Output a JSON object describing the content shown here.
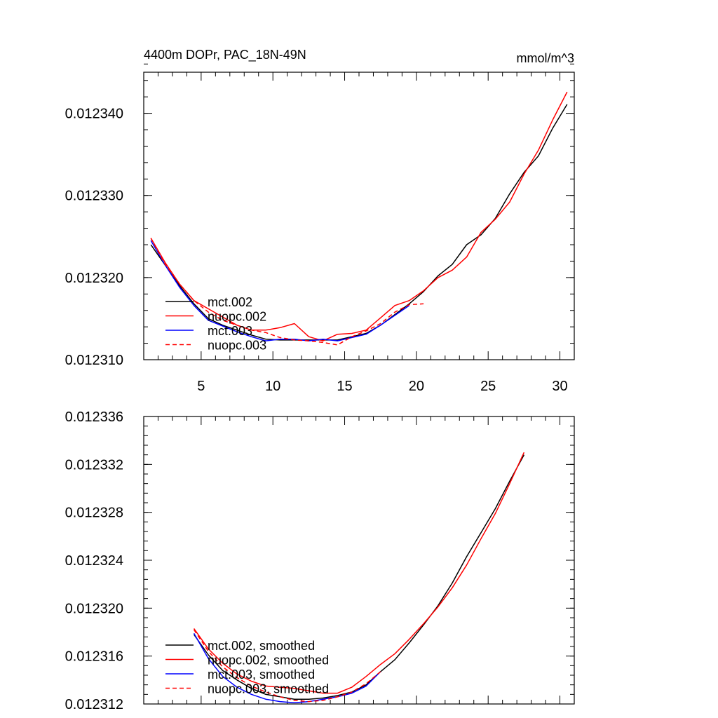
{
  "chart_data": [
    {
      "type": "line",
      "title": "4400m DOPr, PAC_18N-49N",
      "units": "mmol/m^3",
      "xlim": [
        1,
        31
      ],
      "ylim": [
        0.01231,
        0.012345
      ],
      "xticks": [
        5,
        10,
        15,
        20,
        25,
        30
      ],
      "xtick_labels": [
        "5",
        "10",
        "15",
        "20",
        "25",
        "30"
      ],
      "xtick_minor": [
        2,
        3,
        4,
        6,
        7,
        8,
        9,
        11,
        12,
        13,
        14,
        16,
        17,
        18,
        19,
        21,
        22,
        23,
        24,
        26,
        27,
        28,
        29,
        31
      ],
      "yticks": [
        0.01231,
        0.01232,
        0.01233,
        0.01234
      ],
      "ytick_labels": [
        "0.012310",
        "0.012320",
        "0.012330",
        "0.012340"
      ],
      "ytick_minor_step": 2e-06,
      "legend_position": "bottom-left",
      "series": [
        {
          "name": "mct.002",
          "color": "#000000",
          "dash": "solid",
          "x": [
            1.5,
            2.5,
            3.5,
            4.5,
            5.5,
            6.5,
            7.5,
            8.5,
            9.5,
            10.5,
            11.5,
            12.5,
            13.5,
            14.5,
            15.5,
            16.5,
            17.5,
            18.5,
            19.5,
            20.5,
            21.5,
            22.5,
            23.5,
            24.5,
            25.5,
            26.5,
            27.5,
            28.5,
            29.5,
            30.5
          ],
          "values": [
            0.012324,
            0.0123215,
            0.012319,
            0.0123168,
            0.012315,
            0.0123142,
            0.0123136,
            0.012313,
            0.0123125,
            0.0123124,
            0.0123124,
            0.0123124,
            0.0123124,
            0.0123124,
            0.0123128,
            0.0123132,
            0.0123142,
            0.0123155,
            0.0123168,
            0.0123183,
            0.0123202,
            0.0123216,
            0.012324,
            0.0123252,
            0.0123272,
            0.0123302,
            0.0123328,
            0.0123348,
            0.0123382,
            0.0123411
          ]
        },
        {
          "name": "nuopc.002",
          "color": "#ff0000",
          "dash": "solid",
          "x": [
            1.5,
            2.5,
            3.5,
            4.5,
            5.5,
            6.5,
            7.5,
            8.5,
            9.5,
            10.5,
            11.5,
            12.5,
            13.5,
            14.5,
            15.5,
            16.5,
            17.5,
            18.5,
            19.5,
            20.5,
            21.5,
            22.5,
            23.5,
            24.5,
            25.5,
            26.5,
            27.5,
            28.5,
            29.5,
            30.5
          ],
          "values": [
            0.0123248,
            0.0123218,
            0.0123192,
            0.0123172,
            0.0123162,
            0.0123152,
            0.0123142,
            0.0123136,
            0.0123136,
            0.0123139,
            0.0123144,
            0.0123128,
            0.0123123,
            0.0123131,
            0.0123132,
            0.0123136,
            0.0123151,
            0.0123166,
            0.0123172,
            0.0123184,
            0.01232,
            0.0123209,
            0.0123225,
            0.0123255,
            0.0123271,
            0.0123292,
            0.0123326,
            0.0123355,
            0.0123392,
            0.0123426
          ]
        },
        {
          "name": "mct.003",
          "color": "#0000ff",
          "dash": "solid",
          "x": [
            1.5,
            2.5,
            3.5,
            4.5,
            5.5,
            6.5,
            7.5,
            8.5,
            9.5,
            10.5,
            11.5,
            12.5,
            13.5,
            14.5,
            15.5,
            16.5,
            17.5,
            18.5,
            19.5
          ],
          "values": [
            0.0123245,
            0.0123215,
            0.0123188,
            0.0123166,
            0.0123148,
            0.0123141,
            0.0123134,
            0.0123128,
            0.0123123,
            0.0123125,
            0.0123125,
            0.0123123,
            0.0123125,
            0.0123123,
            0.0123127,
            0.0123131,
            0.0123142,
            0.0123154,
            0.0123166
          ]
        },
        {
          "name": "nuopc.003",
          "color": "#ff0000",
          "dash": "dashed",
          "x": [
            1.5,
            2.5,
            3.5,
            4.5,
            5.5,
            6.5,
            7.5,
            8.5,
            9.5,
            10.5,
            11.5,
            12.5,
            13.5,
            14.5,
            15.5,
            16.5,
            17.5,
            18.5,
            19.5,
            20.5
          ],
          "values": [
            0.0123248,
            0.0123216,
            0.0123192,
            0.0123172,
            0.0123158,
            0.0123148,
            0.0123142,
            0.0123136,
            0.0123133,
            0.0123127,
            0.0123124,
            0.0123123,
            0.0123121,
            0.0123118,
            0.0123128,
            0.0123135,
            0.0123144,
            0.0123158,
            0.0123167,
            0.0123168
          ]
        }
      ]
    },
    {
      "type": "line",
      "title": "",
      "xlim": [
        1,
        31
      ],
      "ylim": [
        0.012312,
        0.012336
      ],
      "xticks": [
        5,
        10,
        15,
        20,
        25,
        30
      ],
      "xtick_labels": [],
      "xtick_minor": [
        2,
        3,
        4,
        6,
        7,
        8,
        9,
        11,
        12,
        13,
        14,
        16,
        17,
        18,
        19,
        21,
        22,
        23,
        24,
        26,
        27,
        28,
        29,
        31
      ],
      "yticks": [
        0.012312,
        0.012316,
        0.01232,
        0.012324,
        0.012328,
        0.012332,
        0.012336
      ],
      "ytick_labels": [
        "0.012312",
        "0.012316",
        "0.012320",
        "0.012324",
        "0.012328",
        "0.012332",
        "0.012336"
      ],
      "ytick_minor_step": 8e-07,
      "legend_position": "bottom-left",
      "series": [
        {
          "name": "mct.002, smoothed",
          "color": "#000000",
          "dash": "solid",
          "x": [
            4.5,
            5.5,
            6.5,
            7.5,
            8.5,
            9.5,
            10.5,
            11.5,
            12.5,
            13.5,
            14.5,
            15.5,
            16.5,
            17.5,
            18.5,
            19.5,
            20.5,
            21.5,
            22.5,
            23.5,
            24.5,
            25.5,
            26.5,
            27.5
          ],
          "values": [
            0.0123178,
            0.0123161,
            0.0123148,
            0.012314,
            0.0123133,
            0.0123128,
            0.0123126,
            0.0123124,
            0.0123124,
            0.0123125,
            0.0123127,
            0.012313,
            0.0123136,
            0.0123147,
            0.0123157,
            0.0123171,
            0.0123186,
            0.0123202,
            0.0123221,
            0.0123243,
            0.0123263,
            0.0123283,
            0.0123306,
            0.0123328
          ]
        },
        {
          "name": "nuopc.002, smoothed",
          "color": "#ff0000",
          "dash": "solid",
          "x": [
            4.5,
            5.5,
            6.5,
            7.5,
            8.5,
            9.5,
            10.5,
            11.5,
            12.5,
            13.5,
            14.5,
            15.5,
            16.5,
            17.5,
            18.5,
            19.5,
            20.5,
            21.5,
            22.5,
            23.5,
            24.5,
            25.5,
            26.5,
            27.5
          ],
          "values": [
            0.0123183,
            0.0123166,
            0.0123154,
            0.0123145,
            0.0123139,
            0.0123135,
            0.0123134,
            0.0123133,
            0.0123131,
            0.0123129,
            0.0123129,
            0.0123134,
            0.0123143,
            0.0123153,
            0.0123162,
            0.0123174,
            0.0123187,
            0.0123201,
            0.0123217,
            0.0123236,
            0.0123258,
            0.0123279,
            0.0123304,
            0.012333
          ]
        },
        {
          "name": "mct.003, smoothed",
          "color": "#0000ff",
          "dash": "solid",
          "x": [
            4.5,
            5.5,
            6.5,
            7.5,
            8.5,
            9.5,
            10.5,
            11.5,
            12.5,
            13.5,
            14.5,
            15.5,
            16.5,
            17.5
          ],
          "values": [
            0.0123179,
            0.0123158,
            0.0123143,
            0.0123134,
            0.0123128,
            0.0123124,
            0.0123122,
            0.0123121,
            0.0123122,
            0.0123124,
            0.0123126,
            0.0123129,
            0.0123135,
            0.0123147
          ]
        },
        {
          "name": "nuopc.003, smoothed",
          "color": "#ff0000",
          "dash": "dashed",
          "x": [
            4.5,
            5.5,
            6.5,
            7.5,
            8.5,
            9.5,
            10.5,
            11.5,
            12.5,
            13.5,
            14.5,
            15.5,
            16.5,
            17.5
          ],
          "values": [
            0.0123182,
            0.0123164,
            0.0123151,
            0.0123142,
            0.0123135,
            0.012313,
            0.0123126,
            0.0123123,
            0.0123122,
            0.0123123,
            0.0123126,
            0.012313,
            0.0123137,
            0.0123147
          ]
        }
      ]
    }
  ]
}
